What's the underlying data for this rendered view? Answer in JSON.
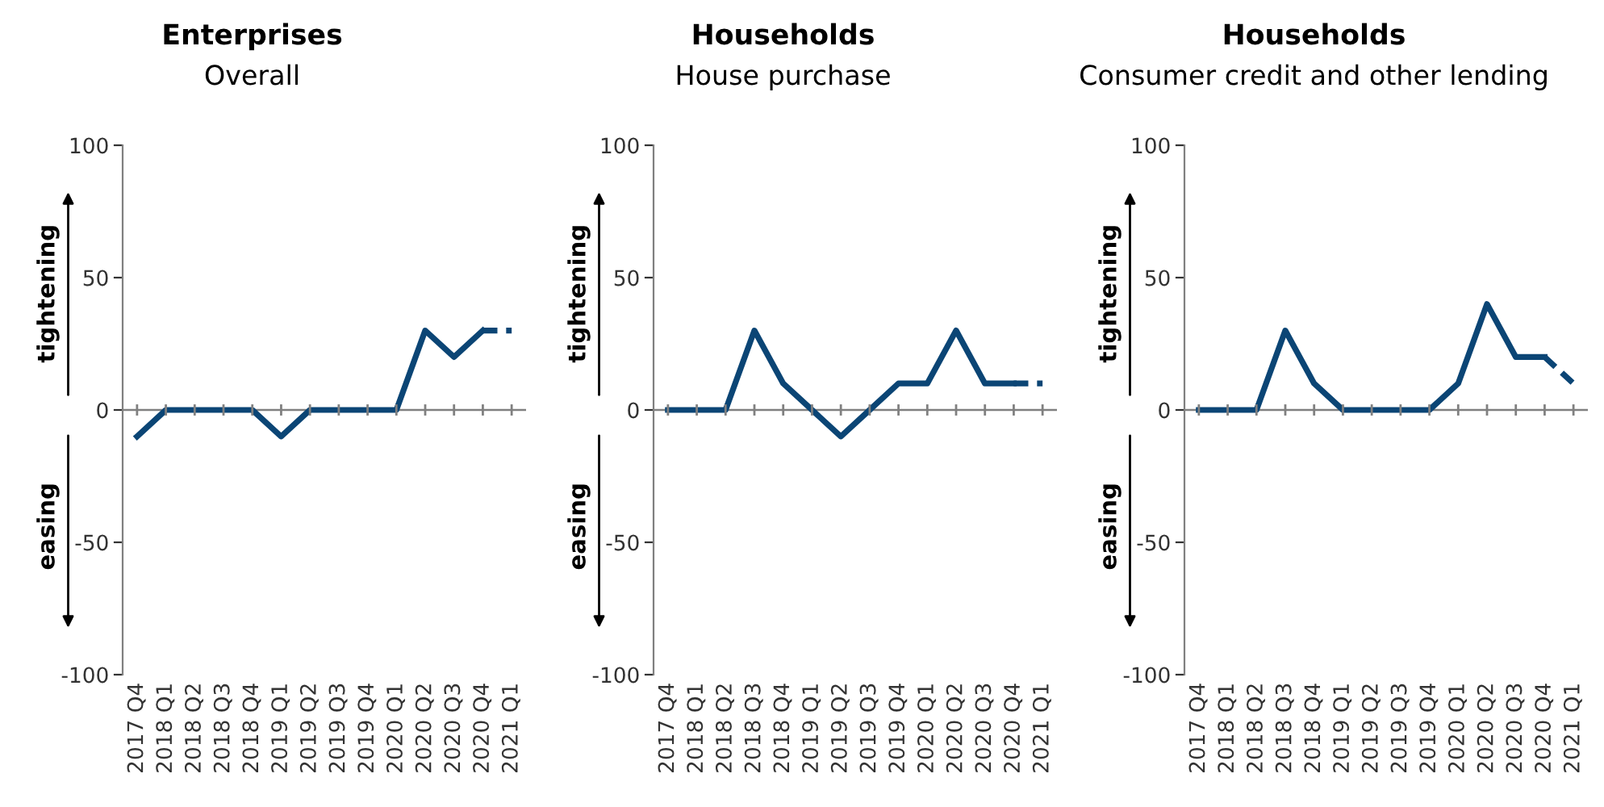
{
  "chart_data": [
    {
      "type": "line",
      "title": "Enterprises",
      "subtitle": "Overall",
      "annotations": [
        "tightening",
        "easing"
      ],
      "categories": [
        "2017 Q4",
        "2018 Q1",
        "2018 Q2",
        "2018 Q3",
        "2018 Q4",
        "2019 Q1",
        "2019 Q2",
        "2019 Q3",
        "2019 Q4",
        "2020 Q1",
        "2020 Q2",
        "2020 Q3",
        "2020 Q4",
        "2021 Q1"
      ],
      "series": [
        {
          "color": "#0b4575",
          "line_style": "solid",
          "values": [
            -10,
            0,
            0,
            0,
            0,
            -10,
            0,
            0,
            0,
            0,
            30,
            20,
            30,
            null
          ]
        },
        {
          "color": "#0b4575",
          "line_style": "dashed",
          "values": [
            null,
            null,
            null,
            null,
            null,
            null,
            null,
            null,
            null,
            null,
            null,
            null,
            30,
            30
          ]
        }
      ],
      "ylim": [
        -100,
        100
      ],
      "yticks": [
        -100,
        -50,
        0,
        50,
        100
      ],
      "marker": "none",
      "ref_lines": [
        {
          "axis": "y",
          "value": 0,
          "color": "#808080"
        }
      ]
    },
    {
      "type": "line",
      "title": "Households",
      "subtitle": "House purchase",
      "annotations": [
        "tightening",
        "easing"
      ],
      "categories": [
        "2017 Q4",
        "2018 Q1",
        "2018 Q2",
        "2018 Q3",
        "2018 Q4",
        "2019 Q1",
        "2019 Q2",
        "2019 Q3",
        "2019 Q4",
        "2020 Q1",
        "2020 Q2",
        "2020 Q3",
        "2020 Q4",
        "2021 Q1"
      ],
      "series": [
        {
          "color": "#0b4575",
          "line_style": "solid",
          "values": [
            0,
            0,
            0,
            30,
            10,
            0,
            -10,
            0,
            10,
            10,
            30,
            10,
            10,
            null
          ]
        },
        {
          "color": "#0b4575",
          "line_style": "dashed",
          "values": [
            null,
            null,
            null,
            null,
            null,
            null,
            null,
            null,
            null,
            null,
            null,
            null,
            10,
            10
          ]
        }
      ],
      "ylim": [
        -100,
        100
      ],
      "yticks": [
        -100,
        -50,
        0,
        50,
        100
      ],
      "marker": "none",
      "ref_lines": [
        {
          "axis": "y",
          "value": 0,
          "color": "#808080"
        }
      ]
    },
    {
      "type": "line",
      "title": "Households",
      "subtitle": "Consumer credit and other lending",
      "annotations": [
        "tightening",
        "easing"
      ],
      "categories": [
        "2017 Q4",
        "2018 Q1",
        "2018 Q2",
        "2018 Q3",
        "2018 Q4",
        "2019 Q1",
        "2019 Q2",
        "2019 Q3",
        "2019 Q4",
        "2020 Q1",
        "2020 Q2",
        "2020 Q3",
        "2020 Q4",
        "2021 Q1"
      ],
      "series": [
        {
          "color": "#0b4575",
          "line_style": "solid",
          "values": [
            0,
            0,
            0,
            30,
            10,
            0,
            0,
            0,
            0,
            10,
            40,
            20,
            20,
            null
          ]
        },
        {
          "color": "#0b4575",
          "line_style": "dashed",
          "values": [
            null,
            null,
            null,
            null,
            null,
            null,
            null,
            null,
            null,
            null,
            null,
            null,
            20,
            10
          ]
        }
      ],
      "ylim": [
        -100,
        100
      ],
      "yticks": [
        -100,
        -50,
        0,
        50,
        100
      ],
      "marker": "none",
      "ref_lines": [
        {
          "axis": "y",
          "value": 0,
          "color": "#808080"
        }
      ]
    }
  ]
}
